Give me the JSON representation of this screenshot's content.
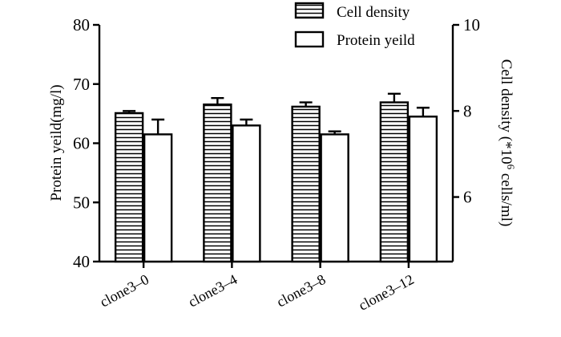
{
  "chart_data": {
    "type": "bar",
    "title": "",
    "xlabel": "",
    "categories": [
      "clone3–0",
      "clone3–4",
      "clone3–8",
      "clone3–12"
    ],
    "left_axis": {
      "label": "Protein yeild(mg/l)",
      "ylim": [
        40,
        80
      ],
      "ticks": [
        "40",
        "50",
        "60",
        "70",
        "80"
      ]
    },
    "right_axis": {
      "label_prefix": "Cell density (*10",
      "label_sup": "6",
      "label_suffix": " cells/ml)",
      "ylim": [
        4.5,
        10
      ],
      "ticks": [
        "6",
        "8",
        "10"
      ]
    },
    "series": [
      {
        "name": "Cell density",
        "axis": "right",
        "pattern": "horizontal-stripes",
        "values": [
          7.95,
          8.15,
          8.1,
          8.2
        ],
        "errors": [
          0.05,
          0.15,
          0.1,
          0.2
        ]
      },
      {
        "name": "Protein yeild",
        "axis": "left",
        "pattern": "white",
        "values": [
          61.5,
          63.0,
          61.5,
          64.5
        ],
        "errors": [
          2.5,
          1.0,
          0.5,
          1.5
        ]
      }
    ],
    "legend_position": "top-right",
    "grid": false
  }
}
